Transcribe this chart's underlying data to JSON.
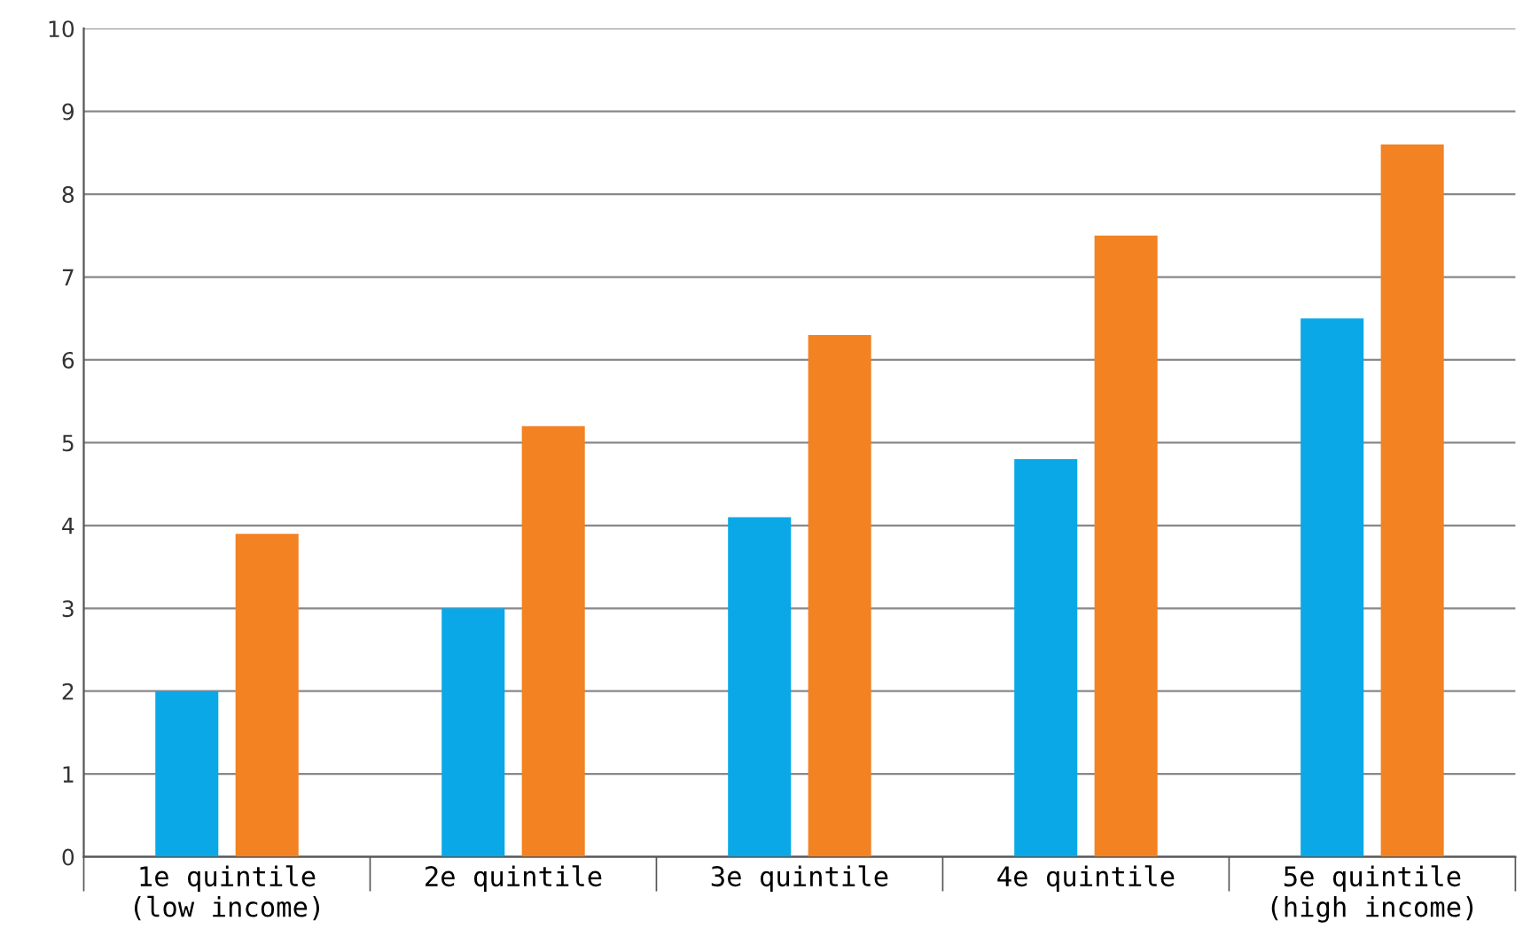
{
  "chart_data": {
    "type": "bar",
    "categories": [
      "1e quintile\n(low income)",
      "2e quintile",
      "3e quintile",
      "4e quintile",
      "5e quintile\n(high income)"
    ],
    "series": [
      {
        "color": "#0aa8e6",
        "values": [
          2.0,
          3.0,
          4.1,
          4.8,
          6.5
        ]
      },
      {
        "color": "#f28222",
        "values": [
          3.9,
          5.2,
          6.3,
          7.5,
          8.6
        ]
      }
    ],
    "ylim": [
      0,
      10
    ],
    "yticks": [
      0,
      1,
      2,
      3,
      4,
      5,
      6,
      7,
      8,
      9,
      10
    ],
    "grid": "y",
    "legend": false
  }
}
